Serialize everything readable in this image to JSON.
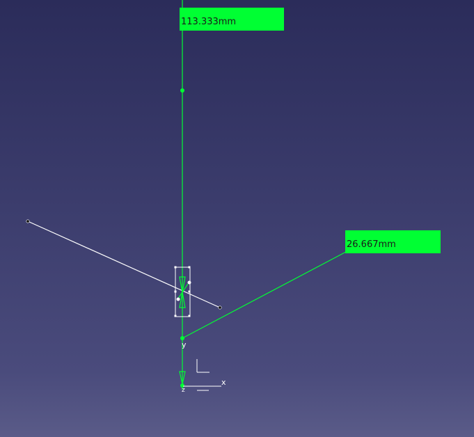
{
  "viewport": {
    "background_top": "#2b2c5a",
    "background_bottom": "#5a5b88",
    "construction_color": "#00ff33",
    "geometry_color": "#ffffff"
  },
  "dimensions": [
    {
      "value": "113.333mm"
    },
    {
      "value": "26.667mm"
    }
  ],
  "axes": {
    "x_label": "x",
    "y_label": "y",
    "z_label": "z"
  }
}
